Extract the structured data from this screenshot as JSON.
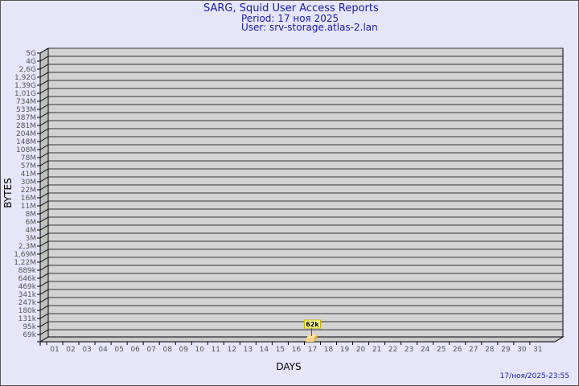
{
  "header": {
    "title": "SARG, Squid User Access Reports",
    "period": "Period: 17 ноя 2025",
    "user": "User: srv-storage.atlas-2.lan"
  },
  "footer": {
    "timestamp": "17/ноя/2025-23:55"
  },
  "colors": {
    "background": "#e6e6fa",
    "plot": "#d3d3d3",
    "bar": "#ffd27f",
    "title": "#1a1aa6"
  },
  "chart_data": {
    "type": "bar",
    "style": "3d",
    "xlabel": "DAYS",
    "ylabel": "BYTES",
    "grid": true,
    "categories": [
      "01",
      "02",
      "03",
      "04",
      "05",
      "06",
      "07",
      "08",
      "09",
      "10",
      "11",
      "12",
      "13",
      "14",
      "15",
      "16",
      "17",
      "18",
      "19",
      "20",
      "21",
      "22",
      "23",
      "24",
      "25",
      "26",
      "27",
      "28",
      "29",
      "30",
      "31"
    ],
    "y_ticks": [
      "69k",
      "95k",
      "131k",
      "180k",
      "247k",
      "341k",
      "469k",
      "646k",
      "889k",
      "1,22M",
      "1,69M",
      "2,3M",
      "3M",
      "4M",
      "6M",
      "8M",
      "11M",
      "16M",
      "22M",
      "30M",
      "41M",
      "57M",
      "78M",
      "108M",
      "148M",
      "204M",
      "281M",
      "387M",
      "533M",
      "734M",
      "1,01G",
      "1,39G",
      "1,92G",
      "2,6G",
      "4G",
      "5G"
    ],
    "y_scale": "log",
    "series": [
      {
        "points": [
          {
            "x": "17",
            "value": 62000,
            "label": "62k"
          }
        ]
      }
    ]
  }
}
